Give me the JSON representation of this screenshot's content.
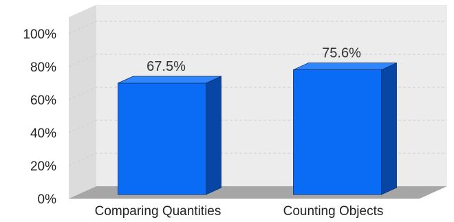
{
  "chart_data": {
    "type": "bar",
    "categories": [
      "Comparing Quantities",
      "Counting Objects"
    ],
    "values": [
      67.5,
      75.6
    ],
    "data_labels": [
      "67.5%",
      "75.6%"
    ],
    "y_ticks": [
      "0%",
      "20%",
      "40%",
      "60%",
      "80%",
      "100%"
    ],
    "ylim": [
      0,
      100
    ],
    "grid": true,
    "style": "3d",
    "colors": {
      "bar_front": "#0a6cf5",
      "bar_top": "#2f86ff",
      "bar_side": "#0846a6",
      "wall_back": "#ececec",
      "wall_side": "#dcdcdc",
      "floor": "#a6a6a6",
      "grid": "#cfcfcf"
    }
  }
}
